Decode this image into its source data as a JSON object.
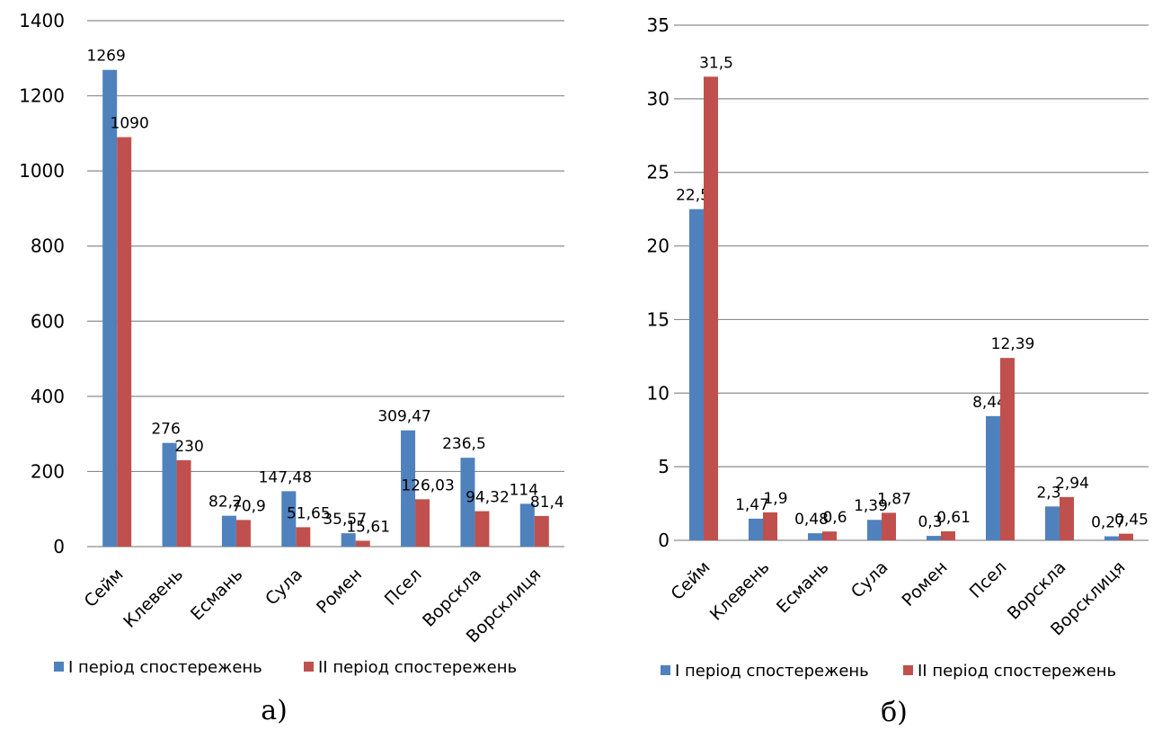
{
  "chart_data": [
    {
      "type": "bar",
      "caption": "а)",
      "categories": [
        "Сейм",
        "Клевень",
        "Есмань",
        "Сула",
        "Ромен",
        "Псел",
        "Ворскла",
        "Ворсклиця"
      ],
      "series": [
        {
          "name": "I період спостережень",
          "color": "#4f81bd",
          "values": [
            1269,
            276,
            82.2,
            147.48,
            35.57,
            309.47,
            236.5,
            114
          ],
          "labels": [
            "1269",
            "276",
            "82,2",
            "147,48",
            "35,57",
            "309,47",
            "236,5",
            "114"
          ]
        },
        {
          "name": "II період спостережень",
          "color": "#c0504d",
          "values": [
            1090,
            230,
            70.9,
            51.65,
            15.61,
            126.03,
            94.32,
            81.4
          ],
          "labels": [
            "1090",
            "230",
            "70,9",
            "51,65",
            "15,61",
            "126,03",
            "94,32",
            "81,4"
          ]
        }
      ],
      "ylim": [
        0,
        1400
      ],
      "yticks": [
        0,
        200,
        400,
        600,
        800,
        1000,
        1200,
        1400
      ],
      "ytick_labels": [
        "0",
        "200",
        "400",
        "600",
        "800",
        "1000",
        "1200",
        "1400"
      ],
      "grid": true,
      "legend": "bottom"
    },
    {
      "type": "bar",
      "caption": "б)",
      "categories": [
        "Сейм",
        "Клевень",
        "Есмань",
        "Сула",
        "Ромен",
        "Псел",
        "Ворскла",
        "Ворсклиця"
      ],
      "series": [
        {
          "name": "I період спостережень",
          "color": "#4f81bd",
          "values": [
            22.5,
            1.47,
            0.48,
            1.39,
            0.3,
            8.44,
            2.3,
            0.27
          ],
          "labels": [
            "22,5",
            "1,47",
            "0,48",
            "1,39",
            "0,3",
            "8,44",
            "2,3",
            "0,27"
          ]
        },
        {
          "name": "II період спостережень",
          "color": "#c0504d",
          "values": [
            31.5,
            1.9,
            0.6,
            1.87,
            0.61,
            12.39,
            2.94,
            0.45
          ],
          "labels": [
            "31,5",
            "1,9",
            "0,6",
            "1,87",
            "0,61",
            "12,39",
            "2,94",
            "0,45"
          ]
        }
      ],
      "ylim": [
        0,
        35
      ],
      "yticks": [
        0,
        5,
        10,
        15,
        20,
        25,
        30,
        35
      ],
      "ytick_labels": [
        "0",
        "5",
        "10",
        "15",
        "20",
        "25",
        "30",
        "35"
      ],
      "grid": true,
      "legend": "bottom"
    }
  ]
}
